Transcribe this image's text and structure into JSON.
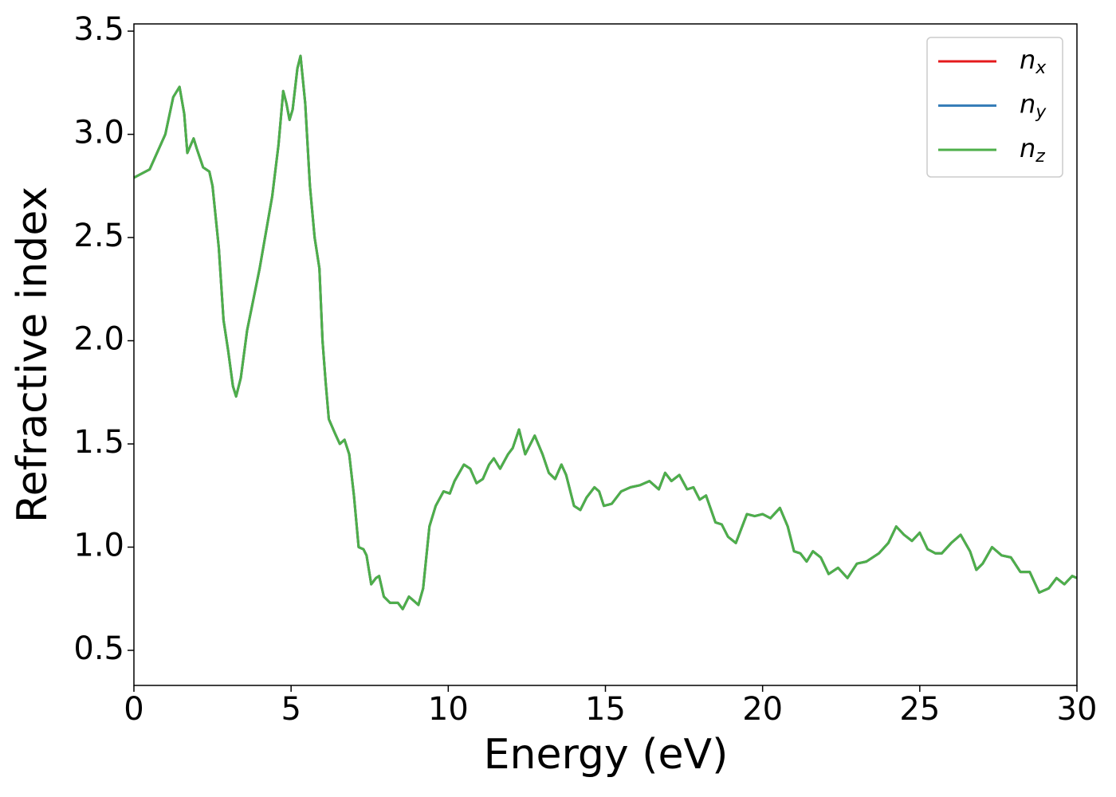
{
  "chart_data": {
    "type": "line",
    "xlabel": "Energy (eV)",
    "ylabel": "Refractive index",
    "x": [
      0,
      0.5,
      1.0,
      1.25,
      1.45,
      1.6,
      1.7,
      1.9,
      2.0,
      2.2,
      2.4,
      2.5,
      2.7,
      2.85,
      3.0,
      3.15,
      3.25,
      3.4,
      3.6,
      4.0,
      4.4,
      4.6,
      4.75,
      4.85,
      4.95,
      5.05,
      5.2,
      5.3,
      5.45,
      5.6,
      5.75,
      5.9,
      6.0,
      6.1,
      6.2,
      6.4,
      6.55,
      6.7,
      6.85,
      7.0,
      7.15,
      7.3,
      7.4,
      7.55,
      7.7,
      7.8,
      7.95,
      8.15,
      8.4,
      8.55,
      8.75,
      8.9,
      9.05,
      9.2,
      9.4,
      9.6,
      9.85,
      10.05,
      10.2,
      10.5,
      10.7,
      10.9,
      11.1,
      11.3,
      11.45,
      11.65,
      11.9,
      12.05,
      12.25,
      12.45,
      12.75,
      13.0,
      13.2,
      13.4,
      13.6,
      13.75,
      14.0,
      14.2,
      14.4,
      14.65,
      14.8,
      14.95,
      15.2,
      15.5,
      15.8,
      16.1,
      16.4,
      16.7,
      16.9,
      17.1,
      17.35,
      17.6,
      17.8,
      18.0,
      18.2,
      18.5,
      18.7,
      18.9,
      19.15,
      19.5,
      19.75,
      20.0,
      20.25,
      20.55,
      20.8,
      21.0,
      21.2,
      21.4,
      21.6,
      21.85,
      22.1,
      22.4,
      22.7,
      23.0,
      23.3,
      23.7,
      24.0,
      24.25,
      24.5,
      24.75,
      25.0,
      25.25,
      25.5,
      25.7,
      26.0,
      26.3,
      26.6,
      26.8,
      27.0,
      27.3,
      27.6,
      27.9,
      28.2,
      28.5,
      28.8,
      29.1,
      29.35,
      29.6,
      29.85,
      30.0
    ],
    "series": [
      {
        "name": "nx",
        "color": "#e41a1c",
        "values": [
          2.79,
          2.83,
          3.0,
          3.18,
          3.23,
          3.1,
          2.91,
          2.98,
          2.93,
          2.84,
          2.82,
          2.75,
          2.45,
          2.1,
          1.95,
          1.78,
          1.73,
          1.82,
          2.05,
          2.35,
          2.7,
          2.95,
          3.21,
          3.15,
          3.07,
          3.12,
          3.32,
          3.38,
          3.15,
          2.75,
          2.5,
          2.35,
          2.0,
          1.8,
          1.62,
          1.55,
          1.5,
          1.52,
          1.45,
          1.25,
          1.0,
          0.99,
          0.96,
          0.82,
          0.85,
          0.86,
          0.76,
          0.73,
          0.73,
          0.7,
          0.76,
          0.74,
          0.72,
          0.8,
          1.1,
          1.2,
          1.27,
          1.26,
          1.32,
          1.4,
          1.38,
          1.31,
          1.33,
          1.4,
          1.43,
          1.38,
          1.45,
          1.48,
          1.57,
          1.45,
          1.54,
          1.45,
          1.36,
          1.33,
          1.4,
          1.35,
          1.2,
          1.18,
          1.24,
          1.29,
          1.27,
          1.2,
          1.21,
          1.27,
          1.29,
          1.3,
          1.32,
          1.28,
          1.36,
          1.32,
          1.35,
          1.28,
          1.29,
          1.23,
          1.25,
          1.12,
          1.11,
          1.05,
          1.02,
          1.16,
          1.15,
          1.16,
          1.14,
          1.19,
          1.1,
          0.98,
          0.97,
          0.93,
          0.98,
          0.95,
          0.87,
          0.9,
          0.85,
          0.92,
          0.93,
          0.97,
          1.02,
          1.1,
          1.06,
          1.03,
          1.07,
          0.99,
          0.97,
          0.97,
          1.02,
          1.06,
          0.98,
          0.89,
          0.92,
          1.0,
          0.96,
          0.95,
          0.88,
          0.88,
          0.78,
          0.8,
          0.85,
          0.82,
          0.86,
          0.85
        ]
      },
      {
        "name": "ny",
        "color": "#377eb8",
        "values": [
          2.79,
          2.83,
          3.0,
          3.18,
          3.23,
          3.1,
          2.91,
          2.98,
          2.93,
          2.84,
          2.82,
          2.75,
          2.45,
          2.1,
          1.95,
          1.78,
          1.73,
          1.82,
          2.05,
          2.35,
          2.7,
          2.95,
          3.21,
          3.15,
          3.07,
          3.12,
          3.32,
          3.38,
          3.15,
          2.75,
          2.5,
          2.35,
          2.0,
          1.8,
          1.62,
          1.55,
          1.5,
          1.52,
          1.45,
          1.25,
          1.0,
          0.99,
          0.96,
          0.82,
          0.85,
          0.86,
          0.76,
          0.73,
          0.73,
          0.7,
          0.76,
          0.74,
          0.72,
          0.8,
          1.1,
          1.2,
          1.27,
          1.26,
          1.32,
          1.4,
          1.38,
          1.31,
          1.33,
          1.4,
          1.43,
          1.38,
          1.45,
          1.48,
          1.57,
          1.45,
          1.54,
          1.45,
          1.36,
          1.33,
          1.4,
          1.35,
          1.2,
          1.18,
          1.24,
          1.29,
          1.27,
          1.2,
          1.21,
          1.27,
          1.29,
          1.3,
          1.32,
          1.28,
          1.36,
          1.32,
          1.35,
          1.28,
          1.29,
          1.23,
          1.25,
          1.12,
          1.11,
          1.05,
          1.02,
          1.16,
          1.15,
          1.16,
          1.14,
          1.19,
          1.1,
          0.98,
          0.97,
          0.93,
          0.98,
          0.95,
          0.87,
          0.9,
          0.85,
          0.92,
          0.93,
          0.97,
          1.02,
          1.1,
          1.06,
          1.03,
          1.07,
          0.99,
          0.97,
          0.97,
          1.02,
          1.06,
          0.98,
          0.89,
          0.92,
          1.0,
          0.96,
          0.95,
          0.88,
          0.88,
          0.78,
          0.8,
          0.85,
          0.82,
          0.86,
          0.85
        ]
      },
      {
        "name": "nz",
        "color": "#4daf4a",
        "values": [
          2.79,
          2.83,
          3.0,
          3.18,
          3.23,
          3.1,
          2.91,
          2.98,
          2.93,
          2.84,
          2.82,
          2.75,
          2.45,
          2.1,
          1.95,
          1.78,
          1.73,
          1.82,
          2.05,
          2.35,
          2.7,
          2.95,
          3.21,
          3.15,
          3.07,
          3.12,
          3.32,
          3.38,
          3.15,
          2.75,
          2.5,
          2.35,
          2.0,
          1.8,
          1.62,
          1.55,
          1.5,
          1.52,
          1.45,
          1.25,
          1.0,
          0.99,
          0.96,
          0.82,
          0.85,
          0.86,
          0.76,
          0.73,
          0.73,
          0.7,
          0.76,
          0.74,
          0.72,
          0.8,
          1.1,
          1.2,
          1.27,
          1.26,
          1.32,
          1.4,
          1.38,
          1.31,
          1.33,
          1.4,
          1.43,
          1.38,
          1.45,
          1.48,
          1.57,
          1.45,
          1.54,
          1.45,
          1.36,
          1.33,
          1.4,
          1.35,
          1.2,
          1.18,
          1.24,
          1.29,
          1.27,
          1.2,
          1.21,
          1.27,
          1.29,
          1.3,
          1.32,
          1.28,
          1.36,
          1.32,
          1.35,
          1.28,
          1.29,
          1.23,
          1.25,
          1.12,
          1.11,
          1.05,
          1.02,
          1.16,
          1.15,
          1.16,
          1.14,
          1.19,
          1.1,
          0.98,
          0.97,
          0.93,
          0.98,
          0.95,
          0.87,
          0.9,
          0.85,
          0.92,
          0.93,
          0.97,
          1.02,
          1.1,
          1.06,
          1.03,
          1.07,
          0.99,
          0.97,
          0.97,
          1.02,
          1.06,
          0.98,
          0.89,
          0.92,
          1.0,
          0.96,
          0.95,
          0.88,
          0.88,
          0.78,
          0.8,
          0.85,
          0.82,
          0.86,
          0.85
        ]
      }
    ],
    "xlim": [
      0,
      30
    ],
    "xticks": [
      0,
      5,
      10,
      15,
      20,
      25,
      30
    ],
    "ylim": [
      0.33,
      3.535
    ],
    "yticks": [
      0.5,
      {
        "value": 1,
        "label": "1.0"
      },
      1.5,
      {
        "value": 2,
        "label": "2.0"
      },
      2.5,
      {
        "value": 3,
        "label": "3.0"
      },
      3.5
    ],
    "grid": false,
    "legend": "upper right"
  }
}
